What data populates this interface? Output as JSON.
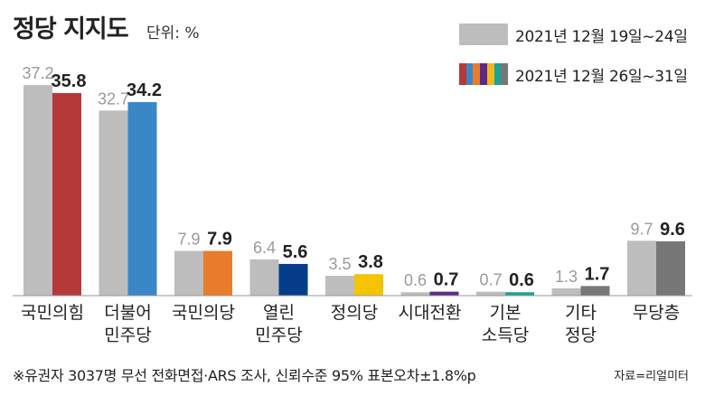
{
  "title": "정당 지지도",
  "unit_label": "단위: %",
  "legend": {
    "first": "2021년 12월 19일~24일",
    "second": "2021년 12월 26일~31일",
    "multi_colors": [
      "#b5393b",
      "#3a87c8",
      "#e87c2c",
      "#5b2a86",
      "#f2b81c",
      "#1aa39a",
      "#777777"
    ]
  },
  "chart_data": {
    "type": "bar",
    "categories": [
      "국민의힘",
      "더불어\n민주당",
      "국민의당",
      "열린\n민주당",
      "정의당",
      "시대전환",
      "기본\n소득당",
      "기타\n정당",
      "무당층"
    ],
    "series": [
      {
        "name": "2021년 12월 19일~24일",
        "values": [
          37.2,
          32.7,
          7.9,
          6.4,
          3.5,
          0.6,
          0.7,
          1.3,
          9.7
        ]
      },
      {
        "name": "2021년 12월 26일~31일",
        "values": [
          35.8,
          34.2,
          7.9,
          5.6,
          3.8,
          0.7,
          0.6,
          1.7,
          9.6
        ]
      }
    ],
    "colors_first": "#bdbdbd",
    "colors_second": [
      "#b5393b",
      "#3a87c8",
      "#e87c2c",
      "#073c8b",
      "#f5c400",
      "#5b2a86",
      "#1aa39a",
      "#777777",
      "#777777"
    ],
    "ylim": [
      0,
      40
    ]
  },
  "footnote": "※유권자 3037명 무선 전화면접·ARS 조사, 신뢰수준 95% 표본오차±1.8%p",
  "source": "자료=리얼미터"
}
